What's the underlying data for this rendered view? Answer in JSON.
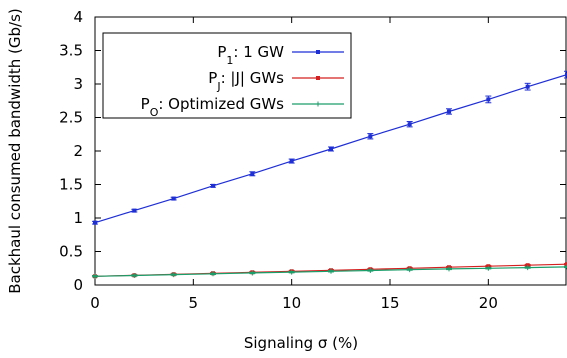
{
  "chart_data": {
    "type": "line",
    "xlabel": "Signaling σ (%)",
    "ylabel": "Backhaul consumed bandwidth (Gb/s)",
    "xlim": [
      0,
      24
    ],
    "ylim": [
      0,
      4
    ],
    "xticks": [
      "0",
      "5",
      "10",
      "15",
      "20"
    ],
    "yticks": [
      "0",
      "0.5",
      "1",
      "1.5",
      "2",
      "2.5",
      "3",
      "3.5",
      "4"
    ],
    "grid": false,
    "legend_position": "top-left",
    "x": [
      0,
      2,
      4,
      6,
      8,
      10,
      12,
      14,
      16,
      18,
      20,
      22,
      24
    ],
    "series": [
      {
        "name_main": "P",
        "name_sub": "1",
        "name_rest": ": 1 GW",
        "color": "#1f2fd6",
        "marker": "square",
        "values": [
          0.93,
          1.11,
          1.29,
          1.48,
          1.66,
          1.85,
          2.03,
          2.22,
          2.4,
          2.59,
          2.77,
          2.96,
          3.14
        ],
        "errors": [
          0.02,
          0.02,
          0.02,
          0.02,
          0.03,
          0.03,
          0.03,
          0.04,
          0.04,
          0.04,
          0.05,
          0.05,
          0.05
        ]
      },
      {
        "name_main": "P",
        "name_sub": "J",
        "name_rest": ": |J| GWs",
        "color": "#d42020",
        "marker": "square",
        "values": [
          0.13,
          0.145,
          0.16,
          0.175,
          0.19,
          0.205,
          0.22,
          0.235,
          0.25,
          0.265,
          0.28,
          0.295,
          0.31
        ],
        "errors": [
          0.01,
          0.01,
          0.01,
          0.01,
          0.01,
          0.01,
          0.01,
          0.01,
          0.01,
          0.01,
          0.01,
          0.01,
          0.01
        ]
      },
      {
        "name_main": "P",
        "name_sub": "O",
        "name_rest": ": Optimized GWs",
        "color": "#1a9e6a",
        "marker": "plus",
        "values": [
          0.13,
          0.142,
          0.155,
          0.167,
          0.18,
          0.192,
          0.205,
          0.217,
          0.23,
          0.24,
          0.25,
          0.26,
          0.27
        ],
        "errors": [
          0.01,
          0.01,
          0.01,
          0.01,
          0.01,
          0.01,
          0.01,
          0.01,
          0.01,
          0.01,
          0.01,
          0.01,
          0.01
        ]
      }
    ]
  }
}
